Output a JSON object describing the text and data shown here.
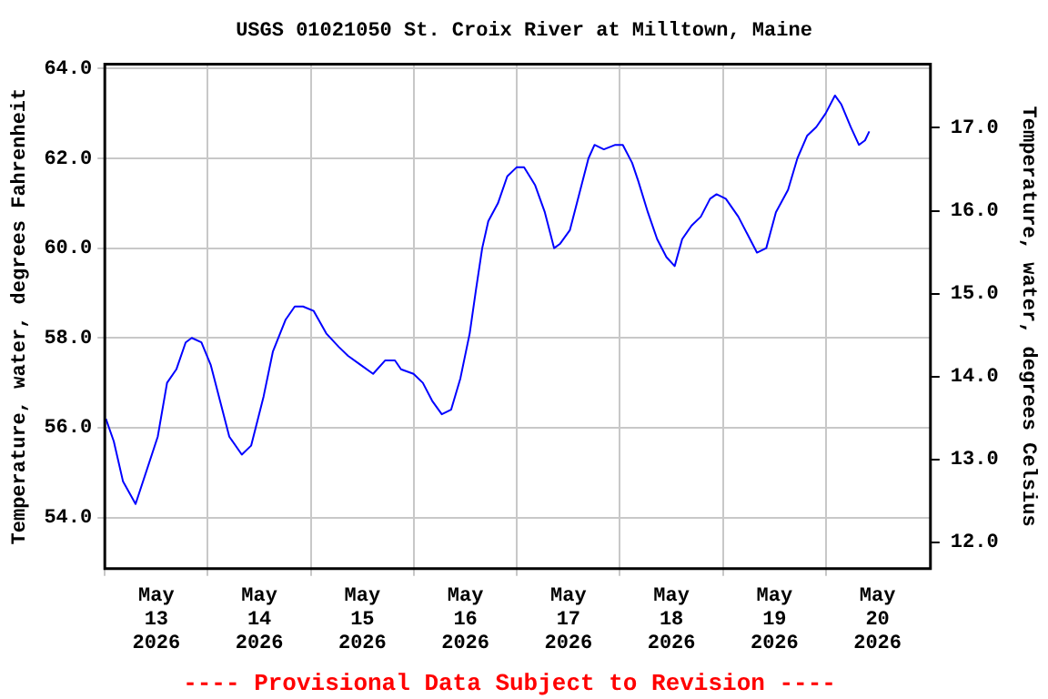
{
  "chart_data": {
    "type": "line",
    "title": "USGS 01021050 St. Croix River at Milltown, Maine",
    "ylabel": "Temperature, water, degrees Fahrenheit",
    "y2label": "Temperature, water, degrees Celsius",
    "annotations": [
      "---- Provisional Data Subject to Revision ----"
    ],
    "x": [
      "2026-05-12T12:15",
      "2026-05-12T14:05",
      "2026-05-12T16:15",
      "2026-05-12T19:10",
      "2026-05-13T00:20",
      "2026-05-13T02:30",
      "2026-05-13T04:40",
      "2026-05-13T06:50",
      "2026-05-13T08:15",
      "2026-05-13T10:30",
      "2026-05-13T12:40",
      "2026-05-13T14:50",
      "2026-05-13T17:00",
      "2026-05-13T19:55",
      "2026-05-13T22:05",
      "2026-05-14T01:00",
      "2026-05-14T03:10",
      "2026-05-14T06:05",
      "2026-05-14T08:15",
      "2026-05-14T10:10",
      "2026-05-14T12:40",
      "2026-05-14T15:35",
      "2026-05-14T18:30",
      "2026-05-14T20:40",
      "2026-05-14T23:35",
      "2026-05-15T02:30",
      "2026-05-15T05:20",
      "2026-05-15T07:35",
      "2026-05-15T09:00",
      "2026-05-15T11:55",
      "2026-05-15T14:05",
      "2026-05-15T16:15",
      "2026-05-15T18:30",
      "2026-05-15T20:40",
      "2026-05-15T22:50",
      "2026-05-16T01:00",
      "2026-05-16T02:30",
      "2026-05-16T03:55",
      "2026-05-16T05:20",
      "2026-05-16T07:35",
      "2026-05-16T09:45",
      "2026-05-16T11:55",
      "2026-05-16T13:40",
      "2026-05-16T16:15",
      "2026-05-16T18:30",
      "2026-05-16T20:40",
      "2026-05-16T22:05",
      "2026-05-17T00:20",
      "2026-05-17T02:30",
      "2026-05-17T04:40",
      "2026-05-17T06:05",
      "2026-05-17T08:15",
      "2026-05-17T10:55",
      "2026-05-17T12:40",
      "2026-05-17T14:50",
      "2026-05-17T16:15",
      "2026-05-17T18:30",
      "2026-05-17T20:40",
      "2026-05-17T22:50",
      "2026-05-18T00:45",
      "2026-05-18T02:30",
      "2026-05-18T04:40",
      "2026-05-18T06:50",
      "2026-05-18T09:00",
      "2026-05-18T10:30",
      "2026-05-18T12:40",
      "2026-05-18T15:35",
      "2026-05-18T17:45",
      "2026-05-18T19:55",
      "2026-05-18T22:05",
      "2026-05-19T00:20",
      "2026-05-19T03:10",
      "2026-05-19T05:20",
      "2026-05-19T07:35",
      "2026-05-19T09:45",
      "2026-05-19T11:55",
      "2026-05-19T14:05",
      "2026-05-19T15:35",
      "2026-05-19T17:45",
      "2026-05-19T19:40",
      "2026-05-19T21:05",
      "2026-05-19T22:05"
    ],
    "series": [
      {
        "color": "#0000ff",
        "values": [
          56.2,
          55.7,
          54.8,
          54.3,
          55.8,
          57.0,
          57.3,
          57.9,
          58.0,
          57.9,
          57.4,
          56.6,
          55.8,
          55.4,
          55.6,
          56.7,
          57.7,
          58.4,
          58.7,
          58.7,
          58.6,
          58.1,
          57.8,
          57.6,
          57.4,
          57.2,
          57.5,
          57.5,
          57.3,
          57.2,
          57.0,
          56.6,
          56.3,
          56.4,
          57.1,
          58.1,
          59.1,
          60.0,
          60.6,
          61.0,
          61.6,
          61.8,
          61.8,
          61.4,
          60.8,
          60.0,
          60.1,
          60.4,
          61.2,
          62.0,
          62.3,
          62.2,
          62.3,
          62.3,
          61.9,
          61.5,
          60.8,
          60.2,
          59.8,
          59.6,
          60.2,
          60.5,
          60.7,
          61.1,
          61.2,
          61.1,
          60.7,
          60.3,
          59.9,
          60.0,
          60.8,
          61.3,
          62.0,
          62.5,
          62.7,
          63.0,
          63.4,
          63.2,
          62.7,
          62.3,
          62.4,
          62.6
        ]
      }
    ],
    "xlim": [
      "2026-05-12T12:00",
      "2026-05-20T12:20"
    ],
    "xticks": [
      {
        "value": "2026-05-12T12:00",
        "label": null
      },
      {
        "value": "2026-05-13",
        "label": "May 13 2026"
      },
      {
        "value": "2026-05-13T12:00",
        "label": null
      },
      {
        "value": "2026-05-14",
        "label": "May 14 2026"
      },
      {
        "value": "2026-05-14T12:00",
        "label": null
      },
      {
        "value": "2026-05-15",
        "label": "May 15 2026"
      },
      {
        "value": "2026-05-15T12:00",
        "label": null
      },
      {
        "value": "2026-05-16",
        "label": "May 16 2026"
      },
      {
        "value": "2026-05-16T12:00",
        "label": null
      },
      {
        "value": "2026-05-17",
        "label": "May 17 2026"
      },
      {
        "value": "2026-05-17T12:00",
        "label": null
      },
      {
        "value": "2026-05-18",
        "label": "May 18 2026"
      },
      {
        "value": "2026-05-18T12:00",
        "label": null
      },
      {
        "value": "2026-05-19",
        "label": "May 19 2026"
      },
      {
        "value": "2026-05-19T12:00",
        "label": null
      },
      {
        "value": "2026-05-20",
        "label": "May 20 2026"
      }
    ],
    "ylim": [
      52.86,
      64.1
    ],
    "yticks": [
      {
        "value": 54,
        "label": "54.0"
      },
      {
        "value": 56,
        "label": "56.0"
      },
      {
        "value": 58,
        "label": "58.0"
      },
      {
        "value": 60,
        "label": "60.0"
      },
      {
        "value": 62,
        "label": "62.0"
      },
      {
        "value": 64,
        "label": "64.0"
      }
    ],
    "y2lim": [
      11.68,
      17.77
    ],
    "y2ticks": [
      {
        "value": 12,
        "label": "12.0"
      },
      {
        "value": 13,
        "label": "13.0"
      },
      {
        "value": 14,
        "label": "14.0"
      },
      {
        "value": 15,
        "label": "15.0"
      },
      {
        "value": 16,
        "label": "16.0"
      },
      {
        "value": 17,
        "label": "17.0"
      }
    ],
    "grid": true,
    "legend": false,
    "marker": "none",
    "line_style": "solid"
  }
}
